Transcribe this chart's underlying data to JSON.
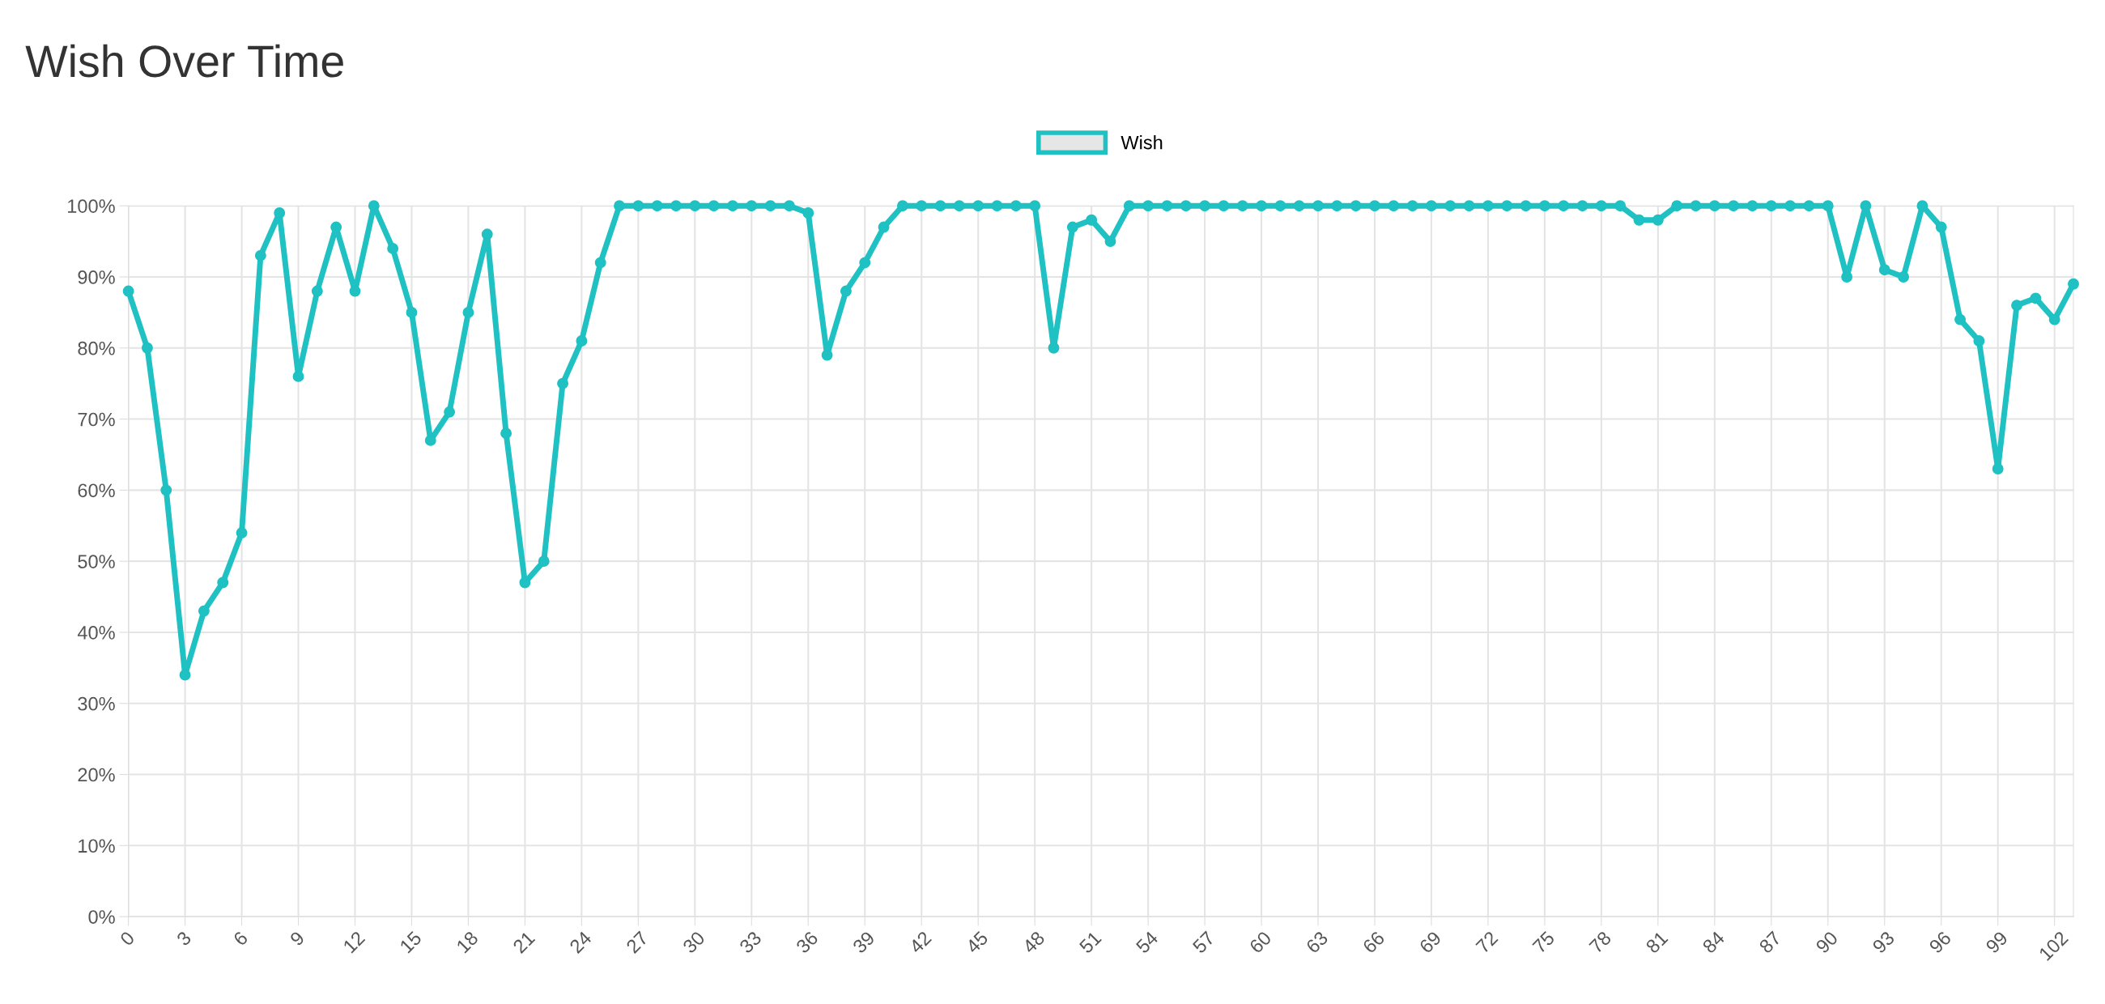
{
  "chart_data": {
    "type": "line",
    "title": "Wish Over Time",
    "x": [
      0,
      1,
      2,
      3,
      4,
      5,
      6,
      7,
      8,
      9,
      10,
      11,
      12,
      13,
      14,
      15,
      16,
      17,
      18,
      19,
      20,
      21,
      22,
      23,
      24,
      25,
      26,
      27,
      28,
      29,
      30,
      31,
      32,
      33,
      34,
      35,
      36,
      37,
      38,
      39,
      40,
      41,
      42,
      43,
      44,
      45,
      46,
      47,
      48,
      49,
      50,
      51,
      52,
      53,
      54,
      55,
      56,
      57,
      58,
      59,
      60,
      61,
      62,
      63,
      64,
      65,
      66,
      67,
      68,
      69,
      70,
      71,
      72,
      73,
      74,
      75,
      76,
      77,
      78,
      79,
      80,
      81,
      82,
      83,
      84,
      85,
      86,
      87,
      88,
      89,
      90,
      91,
      92,
      93,
      94,
      95,
      96,
      97,
      98,
      99,
      100,
      101,
      102,
      103
    ],
    "series": [
      {
        "name": "Wish",
        "color": "#1fc1c3",
        "values": [
          88,
          80,
          60,
          34,
          43,
          47,
          54,
          93,
          99,
          76,
          88,
          97,
          88,
          100,
          94,
          85,
          67,
          71,
          85,
          96,
          68,
          47,
          50,
          75,
          81,
          92,
          100,
          100,
          100,
          100,
          100,
          100,
          100,
          100,
          100,
          100,
          99,
          79,
          88,
          92,
          97,
          100,
          100,
          100,
          100,
          100,
          100,
          100,
          100,
          80,
          97,
          98,
          95,
          100,
          100,
          100,
          100,
          100,
          100,
          100,
          100,
          100,
          100,
          100,
          100,
          100,
          100,
          100,
          100,
          100,
          100,
          100,
          100,
          100,
          100,
          100,
          100,
          100,
          100,
          100,
          98,
          98,
          100,
          100,
          100,
          100,
          100,
          100,
          100,
          100,
          100,
          90,
          100,
          91,
          90,
          100,
          97,
          84,
          81,
          63,
          86,
          87,
          84,
          89
        ]
      }
    ],
    "xlim": [
      0,
      103
    ],
    "xticks": [
      0,
      3,
      6,
      9,
      12,
      15,
      18,
      21,
      24,
      27,
      30,
      33,
      36,
      39,
      42,
      45,
      48,
      51,
      54,
      57,
      60,
      63,
      66,
      69,
      72,
      75,
      78,
      81,
      84,
      87,
      90,
      93,
      96,
      99,
      102
    ],
    "ylim": [
      0,
      100
    ],
    "yticks": [
      {
        "value": 0,
        "label": "0%"
      },
      {
        "value": 10,
        "label": "10%"
      },
      {
        "value": 20,
        "label": "20%"
      },
      {
        "value": 30,
        "label": "30%"
      },
      {
        "value": 40,
        "label": "40%"
      },
      {
        "value": 50,
        "label": "50%"
      },
      {
        "value": 60,
        "label": "60%"
      },
      {
        "value": 70,
        "label": "70%"
      },
      {
        "value": 80,
        "label": "80%"
      },
      {
        "value": 90,
        "label": "90%"
      },
      {
        "value": 100,
        "label": "100%"
      }
    ],
    "grid": true,
    "legend": "top",
    "marker": "circle",
    "line_style": "solid"
  }
}
